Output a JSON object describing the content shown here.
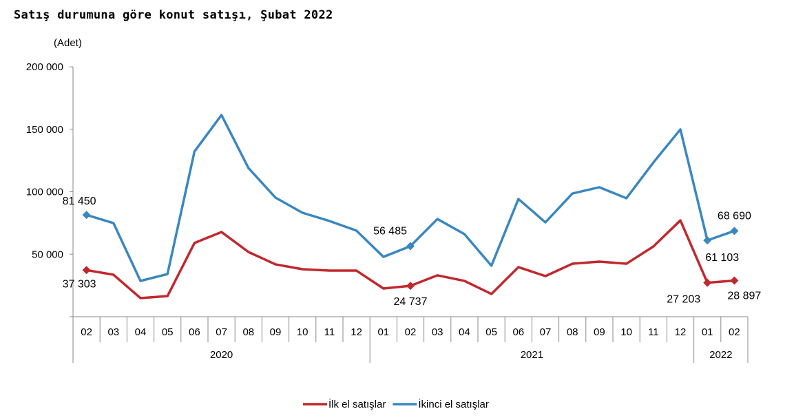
{
  "chart_data": {
    "type": "line",
    "title": "Satış durumuna göre konut satışı, Şubat 2022",
    "ylabel": "(Adet)",
    "ylim": [
      0,
      200000
    ],
    "yticks": [
      0,
      50000,
      100000,
      150000,
      200000
    ],
    "ytick_labels": [
      "",
      "50 000",
      "100 000",
      "150 000",
      "200 000"
    ],
    "categories": [
      "02",
      "03",
      "04",
      "05",
      "06",
      "07",
      "08",
      "09",
      "10",
      "11",
      "12",
      "01",
      "02",
      "03",
      "04",
      "05",
      "06",
      "07",
      "08",
      "09",
      "10",
      "11",
      "12",
      "01",
      "02"
    ],
    "year_groups": [
      {
        "label": "2020",
        "count": 11
      },
      {
        "label": "2021",
        "count": 12
      },
      {
        "label": "2022",
        "count": 2
      }
    ],
    "legend_position": "bottom",
    "series": [
      {
        "name": "İlk el satışlar",
        "color": "#c0282d",
        "values": [
          37303,
          33600,
          14900,
          16500,
          59000,
          67800,
          51800,
          41900,
          38000,
          36900,
          36900,
          22600,
          24737,
          33100,
          28700,
          18200,
          39700,
          32500,
          42400,
          44100,
          42400,
          56200,
          77100,
          27203,
          28897
        ],
        "labels": [
          {
            "index": 0,
            "text": "37 303"
          },
          {
            "index": 12,
            "text": "24 737"
          },
          {
            "index": 23,
            "text": "27 203"
          },
          {
            "index": 24,
            "text": "28 897"
          }
        ]
      },
      {
        "name": "İkinci el satışlar",
        "color": "#3a87c0",
        "values": [
          81450,
          74900,
          28650,
          34150,
          132200,
          161400,
          119000,
          95300,
          83200,
          76600,
          68900,
          47900,
          56485,
          78200,
          66100,
          40800,
          94200,
          75500,
          98600,
          103600,
          94800,
          123400,
          149900,
          61103,
          68690
        ],
        "labels": [
          {
            "index": 0,
            "text": "81 450"
          },
          {
            "index": 12,
            "text": "56 485"
          },
          {
            "index": 23,
            "text": "61 103"
          },
          {
            "index": 24,
            "text": "68 690"
          }
        ]
      }
    ]
  }
}
